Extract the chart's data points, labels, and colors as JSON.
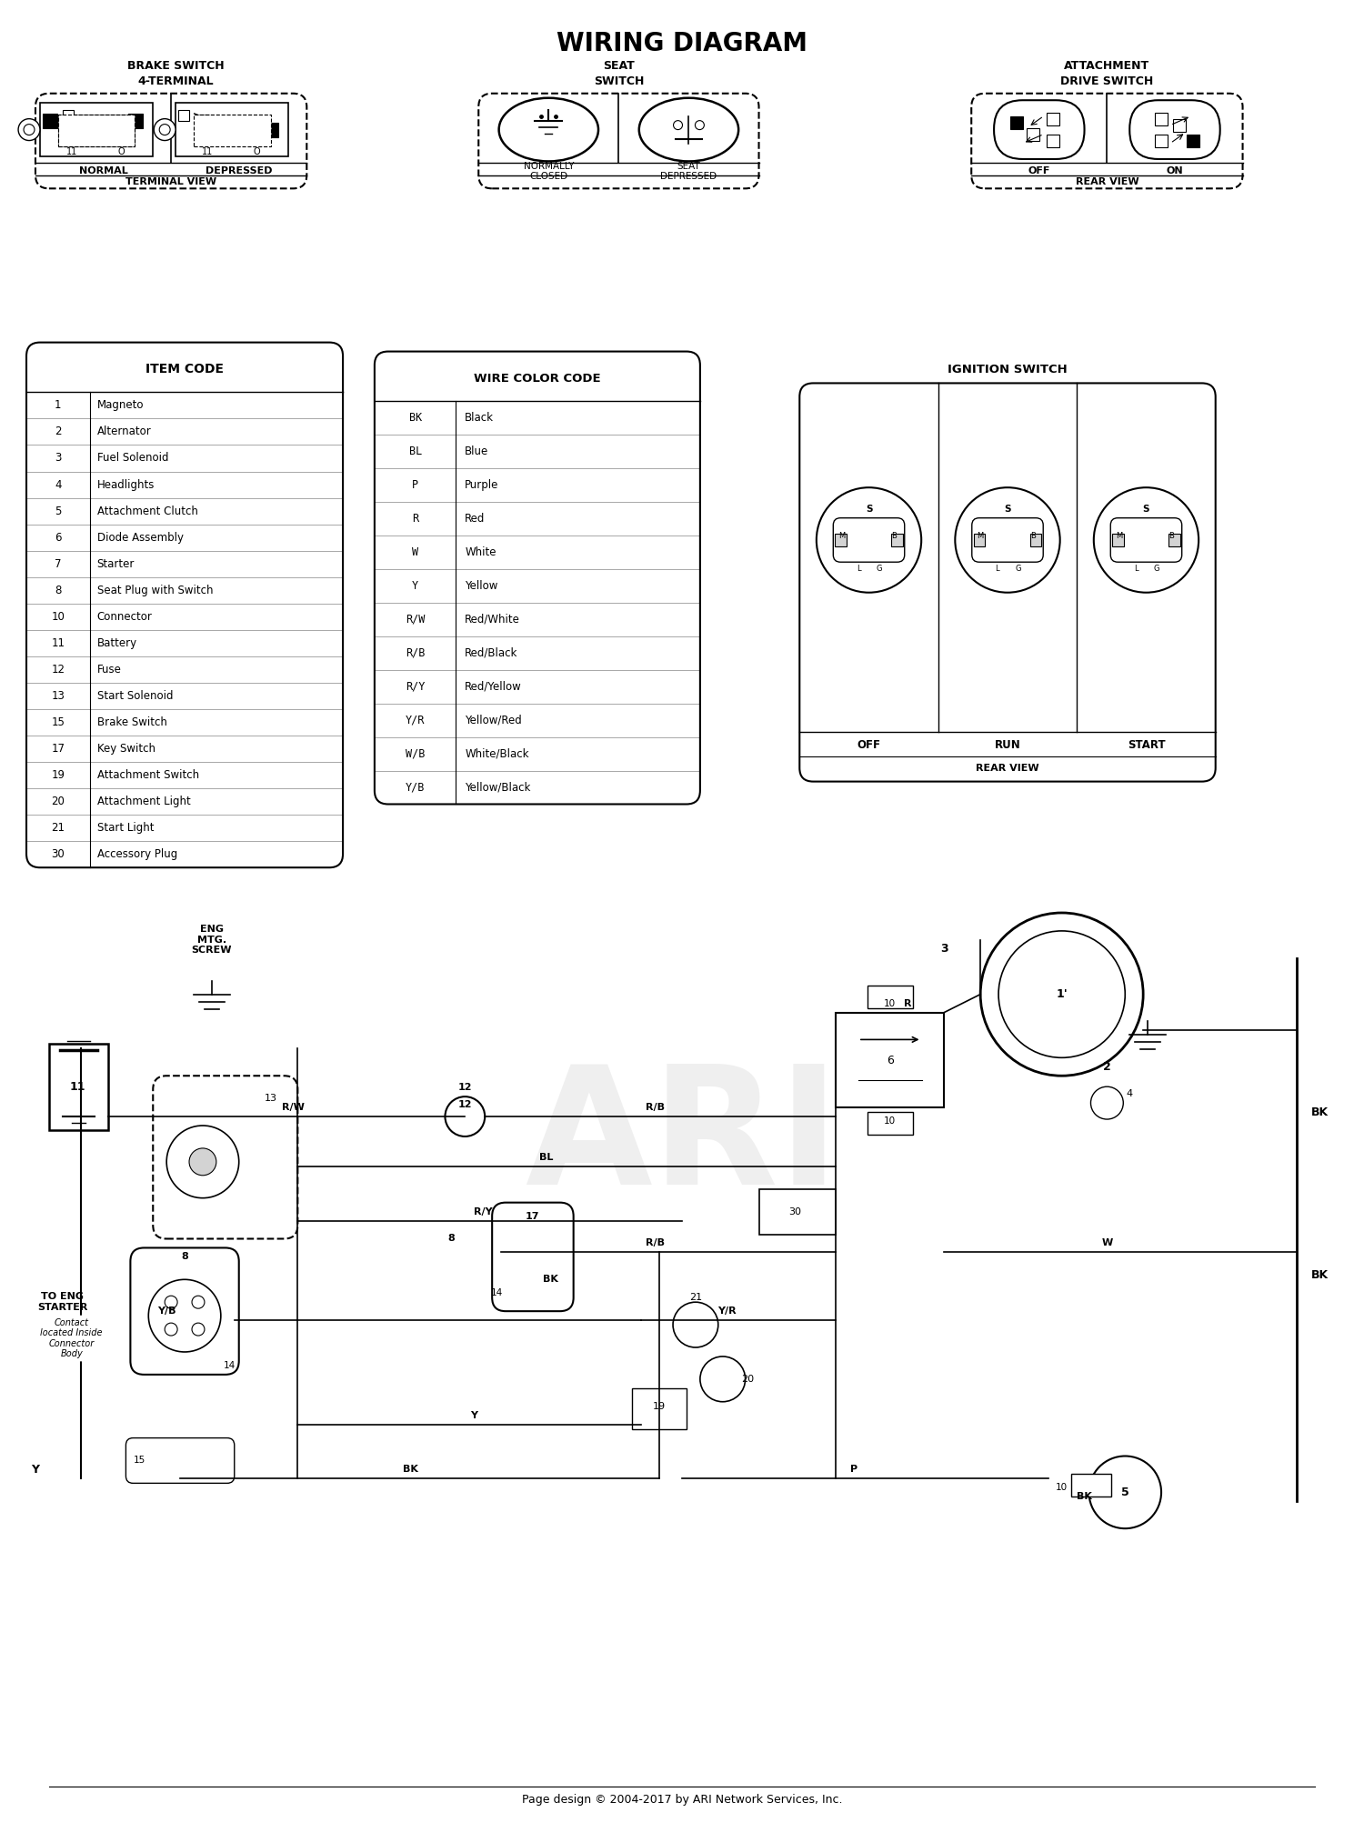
{
  "title": "WIRING DIAGRAM",
  "background_color": "#ffffff",
  "title_fontsize": 20,
  "item_codes": [
    [
      "1",
      "Magneto"
    ],
    [
      "2",
      "Alternator"
    ],
    [
      "3",
      "Fuel Solenoid"
    ],
    [
      "4",
      "Headlights"
    ],
    [
      "5",
      "Attachment Clutch"
    ],
    [
      "6",
      "Diode Assembly"
    ],
    [
      "7",
      "Starter"
    ],
    [
      "8",
      "Seat Plug with Switch"
    ],
    [
      "10",
      "Connector"
    ],
    [
      "11",
      "Battery"
    ],
    [
      "12",
      "Fuse"
    ],
    [
      "13",
      "Start Solenoid"
    ],
    [
      "15",
      "Brake Switch"
    ],
    [
      "17",
      "Key Switch"
    ],
    [
      "19",
      "Attachment Switch"
    ],
    [
      "20",
      "Attachment Light"
    ],
    [
      "21",
      "Start Light"
    ],
    [
      "30",
      "Accessory Plug"
    ]
  ],
  "wire_colors": [
    [
      "BK",
      "Black"
    ],
    [
      "BL",
      "Blue"
    ],
    [
      "P",
      "Purple"
    ],
    [
      "R",
      "Red"
    ],
    [
      "W",
      "White"
    ],
    [
      "Y",
      "Yellow"
    ],
    [
      "R/W",
      "Red/White"
    ],
    [
      "R/B",
      "Red/Black"
    ],
    [
      "R/Y",
      "Red/Yellow"
    ],
    [
      "Y/R",
      "Yellow/Red"
    ],
    [
      "W/B",
      "White/Black"
    ],
    [
      "Y/B",
      "Yellow/Black"
    ]
  ],
  "footer": "Page design © 2004-2017 by ARI Network Services, Inc.",
  "watermark": "ARI"
}
